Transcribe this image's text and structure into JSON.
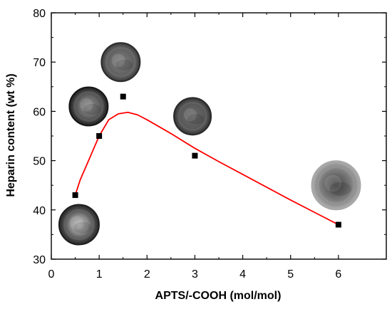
{
  "chart_data": {
    "type": "scatter",
    "xlabel": "APTS/-COOH (mol/mol)",
    "ylabel": "Heparin content (wt %)",
    "xlim": [
      0,
      7
    ],
    "ylim": [
      30,
      80
    ],
    "x_ticks": [
      0,
      1,
      2,
      3,
      4,
      5,
      6
    ],
    "y_ticks": [
      30,
      40,
      50,
      60,
      70,
      80
    ],
    "grid": false,
    "series": [
      {
        "marker": "square",
        "color": "#000000",
        "points": [
          {
            "x": 0.5,
            "y": 43
          },
          {
            "x": 1.0,
            "y": 55
          },
          {
            "x": 1.5,
            "y": 63
          },
          {
            "x": 3.0,
            "y": 51
          },
          {
            "x": 6.0,
            "y": 37
          }
        ]
      },
      {
        "kind": "fit-curve",
        "color": "#ff0000",
        "points": [
          {
            "x": 0.5,
            "y": 43
          },
          {
            "x": 0.6,
            "y": 46
          },
          {
            "x": 0.8,
            "y": 50.5
          },
          {
            "x": 1.0,
            "y": 55
          },
          {
            "x": 1.2,
            "y": 58.3
          },
          {
            "x": 1.4,
            "y": 59.5
          },
          {
            "x": 1.6,
            "y": 59.8
          },
          {
            "x": 1.8,
            "y": 59.3
          },
          {
            "x": 2.0,
            "y": 58.3
          },
          {
            "x": 2.5,
            "y": 55.5
          },
          {
            "x": 3.0,
            "y": 52.5
          },
          {
            "x": 3.5,
            "y": 49.8
          },
          {
            "x": 4.0,
            "y": 47.2
          },
          {
            "x": 4.5,
            "y": 44.6
          },
          {
            "x": 5.0,
            "y": 42.0
          },
          {
            "x": 5.5,
            "y": 39.5
          },
          {
            "x": 6.0,
            "y": 37.0
          }
        ]
      }
    ],
    "insets": [
      {
        "name": "particle-image-1",
        "x": 0.58,
        "y": 37
      },
      {
        "name": "particle-image-2",
        "x": 0.78,
        "y": 61
      },
      {
        "name": "particle-image-3",
        "x": 1.45,
        "y": 70
      },
      {
        "name": "particle-image-4",
        "x": 2.95,
        "y": 59
      },
      {
        "name": "particle-image-5",
        "x": 5.95,
        "y": 45
      }
    ]
  }
}
